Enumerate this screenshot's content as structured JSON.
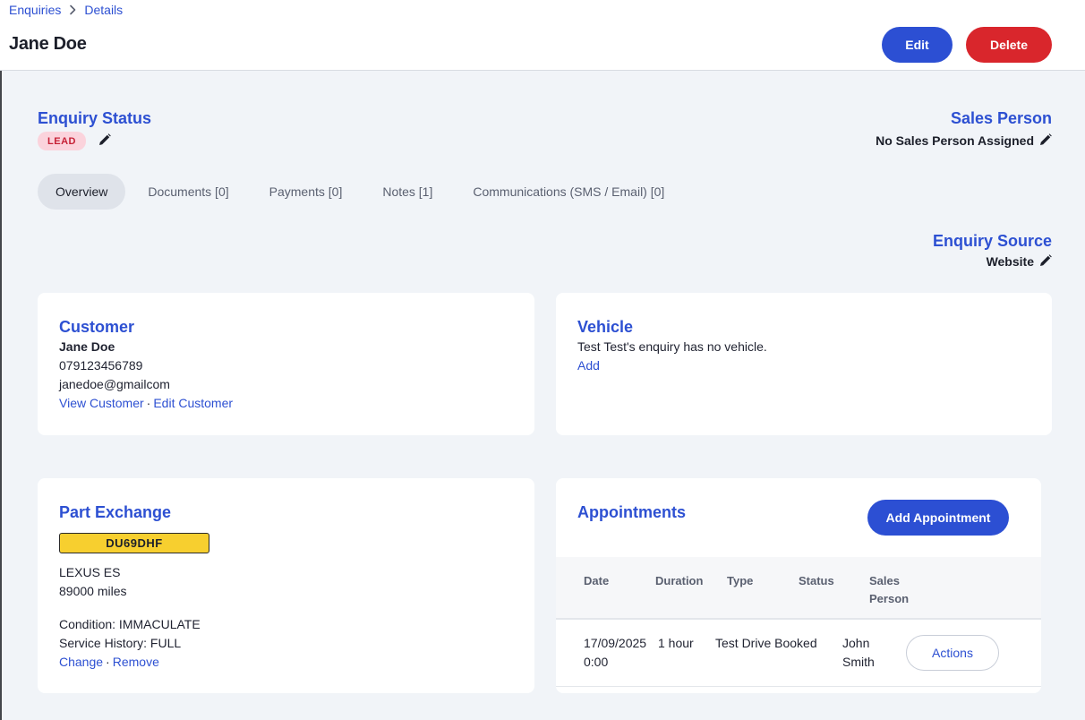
{
  "breadcrumb": {
    "parent": "Enquiries",
    "current": "Details"
  },
  "header": {
    "title": "Jane Doe",
    "edit_label": "Edit",
    "delete_label": "Delete"
  },
  "enquiry_status": {
    "heading": "Enquiry Status",
    "badge": "LEAD"
  },
  "sales_person": {
    "heading": "Sales Person",
    "value": "No Sales Person Assigned"
  },
  "tabs": [
    {
      "label": "Overview",
      "active": true
    },
    {
      "label": "Documents [0]",
      "active": false
    },
    {
      "label": "Payments [0]",
      "active": false
    },
    {
      "label": "Notes [1]",
      "active": false
    },
    {
      "label": "Communications (SMS / Email) [0]",
      "active": false
    }
  ],
  "enquiry_source": {
    "heading": "Enquiry Source",
    "value": "Website"
  },
  "customer": {
    "heading": "Customer",
    "name": "Jane Doe",
    "phone": "079123456789",
    "email": "janedoe@gmailcom",
    "view_link": "View Customer",
    "separator": "·",
    "edit_link": "Edit Customer"
  },
  "vehicle": {
    "heading": "Vehicle",
    "message": "Test Test's enquiry has no vehicle.",
    "add_link": "Add"
  },
  "part_exchange": {
    "heading": "Part Exchange",
    "registration": "DU69DHF",
    "model": "LEXUS ES",
    "mileage": "89000 miles",
    "condition": "Condition: IMMACULATE",
    "service_history": "Service History: FULL",
    "change_link": "Change",
    "separator": "·",
    "remove_link": "Remove"
  },
  "appointments": {
    "heading": "Appointments",
    "add_label": "Add Appointment",
    "columns": [
      "Date",
      "Duration",
      "Type",
      "Status",
      "Sales",
      "Person"
    ],
    "rows": [
      {
        "date_1": "17/09/2025",
        "date_2": "0:00",
        "duration": "1 hour",
        "type": "Test Drive Booked",
        "status": "",
        "sales_1": "John",
        "sales_2": "Smith",
        "actions_label": "Actions"
      }
    ]
  },
  "colors": {
    "accent": "#2c4fd3",
    "danger": "#d9262c",
    "lead_badge_bg": "#fbd3dc",
    "lead_badge_text": "#c62136",
    "plate": "#f7cf2f",
    "page_bg": "#f1f4f8"
  },
  "icons": {
    "breadcrumb_sep": "chevron-right-icon",
    "edit": "pencil-icon"
  }
}
